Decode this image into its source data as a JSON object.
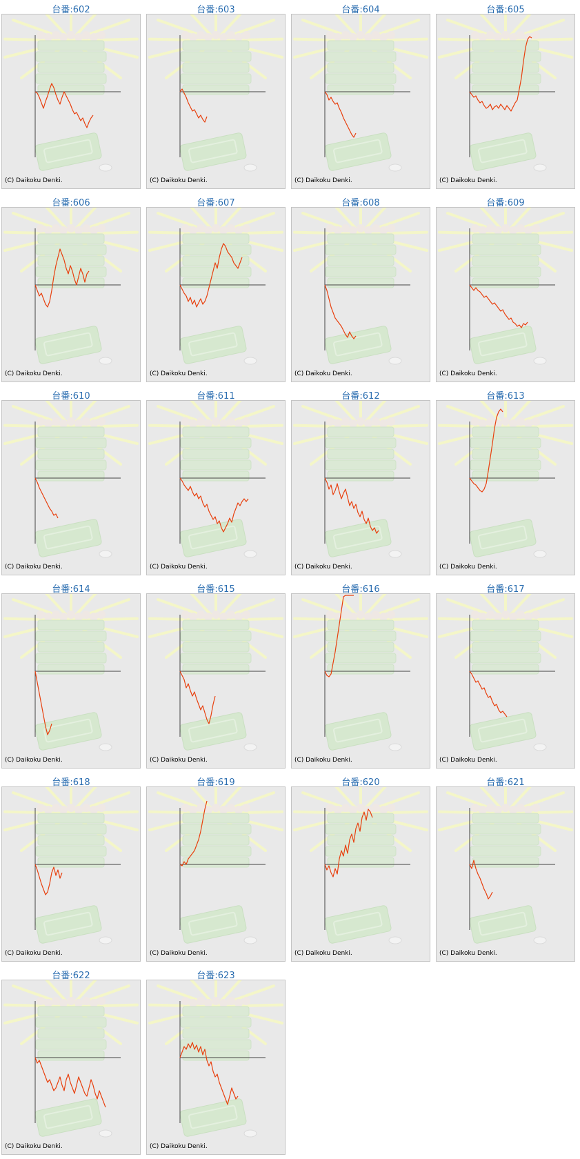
{
  "watermark": "(C) Daikoku Denki.",
  "colors": {
    "line": "#e8400e",
    "axis": "#444444",
    "title": "#2a6db0"
  },
  "chart_data": [
    {
      "type": "line",
      "title": "台番:602",
      "values": [
        0,
        -1,
        -4,
        -8,
        -12,
        -7,
        -3,
        2,
        6,
        3,
        -2,
        -6,
        -9,
        -4,
        0,
        -3,
        -6,
        -9,
        -13,
        -16,
        -15,
        -18,
        -21,
        -19,
        -23,
        -26,
        -22,
        -19,
        -17
      ]
    },
    {
      "type": "line",
      "title": "台番:603",
      "values": [
        0,
        2,
        -1,
        -4,
        -8,
        -11,
        -14,
        -13,
        -16,
        -19,
        -17,
        -20,
        -22,
        -18
      ]
    },
    {
      "type": "line",
      "title": "台番:604",
      "values": [
        0,
        -2,
        -6,
        -4,
        -7,
        -9,
        -8,
        -12,
        -15,
        -19,
        -22,
        -25,
        -28,
        -31,
        -33,
        -30
      ]
    },
    {
      "type": "line",
      "title": "台番:605",
      "values": [
        0,
        -2,
        -4,
        -3,
        -6,
        -8,
        -7,
        -10,
        -12,
        -11,
        -9,
        -13,
        -11,
        -10,
        -12,
        -9,
        -11,
        -13,
        -10,
        -12,
        -14,
        -11,
        -8,
        -6,
        2,
        10,
        22,
        32,
        38,
        40,
        39
      ]
    },
    {
      "type": "line",
      "title": "台番:606",
      "values": [
        0,
        -4,
        -8,
        -6,
        -10,
        -14,
        -16,
        -12,
        -4,
        6,
        14,
        20,
        26,
        22,
        18,
        12,
        8,
        14,
        10,
        4,
        0,
        6,
        12,
        8,
        2,
        8,
        10
      ]
    },
    {
      "type": "line",
      "title": "台番:607",
      "values": [
        0,
        -3,
        -6,
        -8,
        -12,
        -9,
        -14,
        -11,
        -16,
        -13,
        -10,
        -14,
        -12,
        -8,
        -2,
        4,
        10,
        16,
        12,
        20,
        26,
        30,
        28,
        24,
        22,
        20,
        16,
        14,
        12,
        16,
        20
      ]
    },
    {
      "type": "line",
      "title": "台番:608",
      "values": [
        0,
        -4,
        -10,
        -16,
        -20,
        -24,
        -26,
        -28,
        -30,
        -33,
        -36,
        -38,
        -34,
        -37,
        -39,
        -37
      ]
    },
    {
      "type": "line",
      "title": "台番:609",
      "values": [
        0,
        -2,
        -4,
        -2,
        -4,
        -5,
        -7,
        -9,
        -8,
        -10,
        -12,
        -14,
        -13,
        -15,
        -17,
        -19,
        -18,
        -21,
        -23,
        -25,
        -24,
        -27,
        -28,
        -30,
        -29,
        -31,
        -28,
        -29,
        -27
      ]
    },
    {
      "type": "line",
      "title": "台番:610",
      "values": [
        0,
        -3,
        -7,
        -10,
        -13,
        -16,
        -19,
        -22,
        -24,
        -27,
        -26,
        -29
      ]
    },
    {
      "type": "line",
      "title": "台番:611",
      "values": [
        0,
        -2,
        -5,
        -7,
        -9,
        -6,
        -10,
        -13,
        -11,
        -15,
        -13,
        -18,
        -21,
        -19,
        -24,
        -27,
        -30,
        -28,
        -33,
        -31,
        -36,
        -39,
        -36,
        -33,
        -29,
        -32,
        -26,
        -22,
        -18,
        -20,
        -17,
        -15,
        -17,
        -15
      ]
    },
    {
      "type": "line",
      "title": "台番:612",
      "values": [
        0,
        -3,
        -8,
        -5,
        -12,
        -9,
        -4,
        -10,
        -15,
        -11,
        -8,
        -14,
        -20,
        -17,
        -22,
        -19,
        -25,
        -28,
        -24,
        -30,
        -33,
        -29,
        -35,
        -38,
        -36,
        -40,
        -38
      ]
    },
    {
      "type": "line",
      "title": "台番:613",
      "values": [
        0,
        -2,
        -4,
        -5,
        -7,
        -9,
        -10,
        -8,
        -4,
        5,
        15,
        25,
        36,
        44,
        48,
        50,
        48
      ]
    },
    {
      "type": "line",
      "title": "台番:614",
      "values": [
        0,
        -8,
        -16,
        -24,
        -32,
        -40,
        -46,
        -43,
        -38
      ]
    },
    {
      "type": "line",
      "title": "台番:615",
      "values": [
        0,
        -3,
        -6,
        -12,
        -9,
        -14,
        -18,
        -15,
        -20,
        -24,
        -28,
        -25,
        -30,
        -35,
        -38,
        -32,
        -24,
        -18
      ]
    },
    {
      "type": "line",
      "title": "台番:616",
      "values": [
        0,
        -3,
        -4,
        -2,
        6,
        14,
        24,
        34,
        44,
        54,
        62,
        70,
        80,
        88,
        92
      ]
    },
    {
      "type": "line",
      "title": "台番:617",
      "values": [
        0,
        -2,
        -5,
        -8,
        -7,
        -10,
        -13,
        -12,
        -16,
        -19,
        -18,
        -22,
        -25,
        -24,
        -28,
        -30,
        -29,
        -31,
        -33
      ]
    },
    {
      "type": "line",
      "title": "台番:618",
      "values": [
        0,
        -4,
        -9,
        -14,
        -18,
        -22,
        -20,
        -14,
        -6,
        -2,
        -8,
        -4,
        -10,
        -6
      ]
    },
    {
      "type": "line",
      "title": "台番:619",
      "values": [
        0,
        -1,
        2,
        0,
        4,
        6,
        8,
        10,
        14,
        18,
        24,
        32,
        40,
        46
      ]
    },
    {
      "type": "line",
      "title": "台番:620",
      "values": [
        0,
        -4,
        -1,
        -6,
        -9,
        -3,
        -7,
        4,
        10,
        6,
        14,
        8,
        18,
        22,
        16,
        26,
        30,
        24,
        34,
        38,
        32,
        40,
        38,
        34
      ]
    },
    {
      "type": "line",
      "title": "台番:621",
      "values": [
        0,
        -3,
        3,
        -3,
        -7,
        -10,
        -14,
        -18,
        -21,
        -25,
        -23,
        -20
      ]
    },
    {
      "type": "line",
      "title": "台番:622",
      "values": [
        0,
        -4,
        -2,
        -6,
        -10,
        -14,
        -18,
        -16,
        -20,
        -24,
        -22,
        -18,
        -14,
        -20,
        -24,
        -16,
        -12,
        -18,
        -22,
        -26,
        -20,
        -14,
        -18,
        -22,
        -26,
        -28,
        -22,
        -16,
        -20,
        -26,
        -30,
        -24,
        -28,
        -32,
        -36
      ]
    },
    {
      "type": "line",
      "title": "台番:623",
      "values": [
        0,
        4,
        8,
        6,
        10,
        7,
        11,
        6,
        9,
        4,
        8,
        2,
        6,
        -2,
        -6,
        -3,
        -10,
        -14,
        -12,
        -18,
        -22,
        -26,
        -30,
        -34,
        -28,
        -22,
        -26,
        -30,
        -28
      ]
    }
  ]
}
